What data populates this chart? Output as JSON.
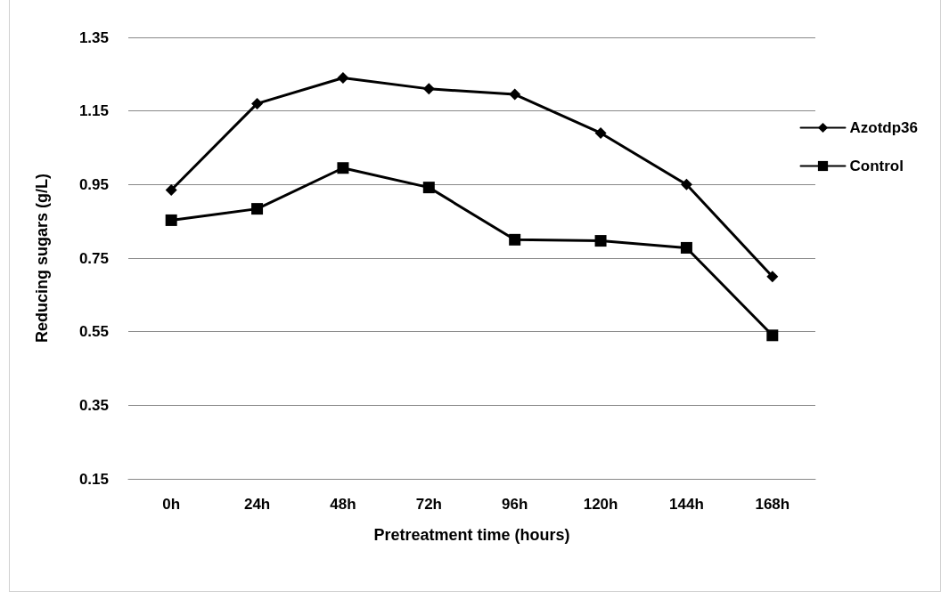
{
  "chart_data": {
    "type": "line",
    "xlabel": "Pretreatment time (hours)",
    "ylabel": "Reducing sugars (g/L)",
    "categories": [
      "0h",
      "24h",
      "48h",
      "72h",
      "96h",
      "120h",
      "144h",
      "168h"
    ],
    "series": [
      {
        "name": "Azotdp36",
        "color": "#000000",
        "marker": "diamond",
        "values": [
          0.935,
          1.17,
          1.24,
          1.21,
          1.195,
          1.09,
          0.95,
          0.7
        ]
      },
      {
        "name": "Control",
        "color": "#000000",
        "marker": "square",
        "values": [
          0.853,
          0.884,
          0.995,
          0.942,
          0.8,
          0.797,
          0.778,
          0.54
        ]
      }
    ],
    "ylim": [
      0.15,
      1.35
    ],
    "yticks": [
      0.15,
      0.35,
      0.55,
      0.75,
      0.95,
      1.15,
      1.35
    ],
    "grid": "y",
    "legend": "right",
    "line_style": "solid"
  }
}
